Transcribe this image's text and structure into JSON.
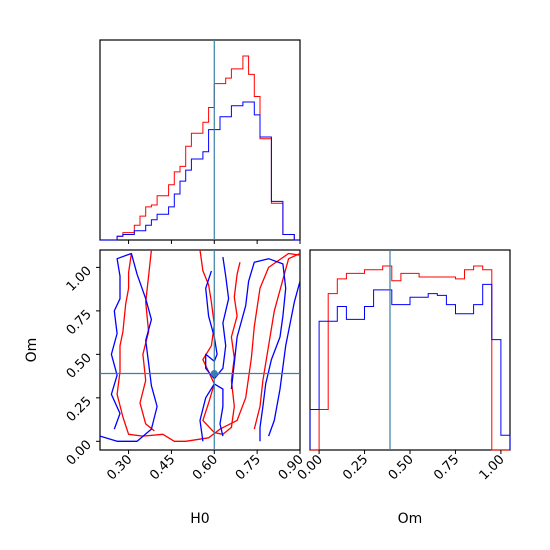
{
  "chart_data": {
    "type": "corner",
    "parameters": [
      "H0",
      "Om"
    ],
    "truths": {
      "H0": 0.6,
      "Om": 0.39
    },
    "truth_color": "#3a7fa8",
    "series": [
      {
        "color": "#ff0000"
      },
      {
        "color": "#0000ff"
      }
    ],
    "h0_hist": {
      "type": "histogram",
      "xlim": [
        0.2,
        0.9
      ],
      "bin_edges": [
        0.2,
        0.22,
        0.24,
        0.26,
        0.28,
        0.3,
        0.32,
        0.34,
        0.36,
        0.38,
        0.4,
        0.42,
        0.44,
        0.46,
        0.48,
        0.5,
        0.52,
        0.54,
        0.56,
        0.58,
        0.6,
        0.62,
        0.64,
        0.66,
        0.68,
        0.7,
        0.72,
        0.74,
        0.76,
        0.78,
        0.8,
        0.82,
        0.84,
        0.86,
        0.88,
        0.9
      ],
      "red": [
        0,
        0,
        0,
        0.02,
        0.04,
        0.04,
        0.08,
        0.13,
        0.18,
        0.19,
        0.24,
        0.24,
        0.3,
        0.37,
        0.4,
        0.51,
        0.58,
        0.58,
        0.64,
        0.72,
        0.85,
        0.85,
        0.88,
        0.93,
        0.93,
        1.0,
        0.9,
        0.78,
        0.55,
        0.55,
        0.2,
        0.2,
        0.03,
        0.03,
        0.0
      ],
      "blue": [
        0,
        0,
        0,
        0.02,
        0.03,
        0.03,
        0.05,
        0.05,
        0.08,
        0.11,
        0.14,
        0.14,
        0.18,
        0.25,
        0.32,
        0.38,
        0.44,
        0.44,
        0.48,
        0.6,
        0.6,
        0.67,
        0.67,
        0.73,
        0.73,
        0.75,
        0.75,
        0.68,
        0.56,
        0.56,
        0.21,
        0.21,
        0.03,
        0.03,
        0.0
      ]
    },
    "om_hist": {
      "type": "histogram",
      "xlim": [
        -0.05,
        1.05
      ],
      "bin_edges": [
        -0.05,
        0.0,
        0.05,
        0.1,
        0.15,
        0.2,
        0.25,
        0.3,
        0.35,
        0.4,
        0.45,
        0.5,
        0.55,
        0.6,
        0.65,
        0.7,
        0.75,
        0.8,
        0.85,
        0.9,
        0.95,
        1.0,
        1.05
      ],
      "red": [
        0.0,
        0.22,
        0.85,
        0.93,
        0.96,
        0.96,
        0.98,
        0.98,
        1.0,
        0.92,
        0.96,
        0.96,
        0.94,
        0.94,
        0.94,
        0.94,
        0.93,
        0.98,
        1.0,
        0.98,
        0.0,
        0.0
      ],
      "blue": [
        0.22,
        0.7,
        0.7,
        0.78,
        0.71,
        0.71,
        0.78,
        0.87,
        0.87,
        0.79,
        0.79,
        0.83,
        0.83,
        0.85,
        0.84,
        0.79,
        0.74,
        0.74,
        0.79,
        0.9,
        0.6,
        0.08
      ]
    },
    "contour": {
      "type": "contour",
      "xlim": [
        0.2,
        0.9
      ],
      "ylim": [
        -0.05,
        1.1
      ],
      "truth_point": [
        0.6,
        0.39
      ],
      "red_contours": [
        [
          [
            0.31,
            1.08
          ],
          [
            0.3,
            0.97
          ],
          [
            0.3,
            0.88
          ],
          [
            0.29,
            0.79
          ],
          [
            0.28,
            0.63
          ],
          [
            0.27,
            0.55
          ],
          [
            0.27,
            0.4
          ],
          [
            0.26,
            0.27
          ],
          [
            0.28,
            0.14
          ],
          [
            0.3,
            0.04
          ],
          [
            0.35,
            0.03
          ],
          [
            0.42,
            0.04
          ],
          [
            0.46,
            0.0
          ],
          [
            0.5,
            0.0
          ],
          [
            0.58,
            0.02
          ],
          [
            0.62,
            0.07
          ],
          [
            0.68,
            0.12
          ],
          [
            0.71,
            0.25
          ],
          [
            0.73,
            0.48
          ],
          [
            0.74,
            0.66
          ],
          [
            0.76,
            0.88
          ],
          [
            0.79,
            1.0
          ],
          [
            0.86,
            1.08
          ],
          [
            0.9,
            1.07
          ]
        ],
        [
          [
            0.55,
            1.1
          ],
          [
            0.56,
            0.98
          ],
          [
            0.58,
            0.9
          ],
          [
            0.59,
            0.8
          ],
          [
            0.6,
            0.67
          ],
          [
            0.59,
            0.55
          ],
          [
            0.56,
            0.47
          ],
          [
            0.58,
            0.4
          ],
          [
            0.6,
            0.33
          ],
          [
            0.58,
            0.22
          ],
          [
            0.56,
            0.12
          ],
          [
            0.6,
            0.05
          ],
          [
            0.63,
            0.04
          ],
          [
            0.66,
            0.08
          ],
          [
            0.67,
            0.2
          ],
          [
            0.66,
            0.35
          ],
          [
            0.67,
            0.48
          ],
          [
            0.66,
            0.6
          ],
          [
            0.68,
            0.72
          ],
          [
            0.67,
            0.83
          ],
          [
            0.68,
            0.96
          ],
          [
            0.69,
            1.03
          ]
        ],
        [
          [
            0.38,
            1.1
          ],
          [
            0.37,
            0.95
          ],
          [
            0.36,
            0.8
          ],
          [
            0.37,
            0.63
          ],
          [
            0.35,
            0.5
          ],
          [
            0.36,
            0.35
          ],
          [
            0.34,
            0.22
          ],
          [
            0.36,
            0.1
          ],
          [
            0.39,
            0.06
          ]
        ],
        [
          [
            0.74,
            0.07
          ],
          [
            0.76,
            0.2
          ],
          [
            0.77,
            0.35
          ],
          [
            0.79,
            0.55
          ],
          [
            0.81,
            0.75
          ],
          [
            0.84,
            0.93
          ],
          [
            0.86,
            1.05
          ],
          [
            0.9,
            1.08
          ]
        ]
      ],
      "blue_contours": [
        [
          [
            0.2,
            0.03
          ],
          [
            0.26,
            0.0
          ],
          [
            0.33,
            0.0
          ],
          [
            0.38,
            0.07
          ],
          [
            0.4,
            0.2
          ],
          [
            0.38,
            0.32
          ],
          [
            0.37,
            0.45
          ],
          [
            0.36,
            0.58
          ],
          [
            0.38,
            0.7
          ],
          [
            0.36,
            0.82
          ],
          [
            0.33,
            0.96
          ],
          [
            0.31,
            1.08
          ],
          [
            0.26,
            1.05
          ],
          [
            0.27,
            0.95
          ],
          [
            0.27,
            0.82
          ],
          [
            0.25,
            0.75
          ],
          [
            0.26,
            0.62
          ],
          [
            0.24,
            0.5
          ],
          [
            0.26,
            0.38
          ],
          [
            0.24,
            0.27
          ],
          [
            0.27,
            0.16
          ],
          [
            0.25,
            0.07
          ]
        ],
        [
          [
            0.56,
            0.0
          ],
          [
            0.55,
            0.12
          ],
          [
            0.57,
            0.25
          ],
          [
            0.6,
            0.33
          ],
          [
            0.63,
            0.3
          ],
          [
            0.63,
            0.2
          ],
          [
            0.62,
            0.1
          ],
          [
            0.63,
            0.03
          ]
        ],
        [
          [
            0.59,
            0.98
          ],
          [
            0.57,
            0.88
          ],
          [
            0.58,
            0.72
          ],
          [
            0.6,
            0.6
          ],
          [
            0.61,
            0.5
          ],
          [
            0.6,
            0.46
          ],
          [
            0.57,
            0.5
          ],
          [
            0.57,
            0.42
          ],
          [
            0.6,
            0.36
          ],
          [
            0.63,
            0.42
          ],
          [
            0.64,
            0.55
          ],
          [
            0.63,
            0.68
          ],
          [
            0.65,
            0.82
          ],
          [
            0.64,
            0.95
          ],
          [
            0.63,
            1.06
          ]
        ],
        [
          [
            0.66,
            0.3
          ],
          [
            0.67,
            0.45
          ],
          [
            0.68,
            0.6
          ],
          [
            0.71,
            0.78
          ],
          [
            0.72,
            0.92
          ],
          [
            0.74,
            1.03
          ],
          [
            0.79,
            1.05
          ],
          [
            0.84,
            1.02
          ],
          [
            0.85,
            0.88
          ],
          [
            0.84,
            0.72
          ],
          [
            0.83,
            0.6
          ],
          [
            0.8,
            0.47
          ],
          [
            0.78,
            0.33
          ],
          [
            0.77,
            0.2
          ],
          [
            0.76,
            0.08
          ],
          [
            0.76,
            0.0
          ]
        ],
        [
          [
            0.9,
            0.92
          ],
          [
            0.88,
            0.8
          ],
          [
            0.85,
            0.55
          ],
          [
            0.83,
            0.3
          ],
          [
            0.81,
            0.12
          ],
          [
            0.79,
            0.03
          ]
        ]
      ]
    },
    "axes": {
      "h0_label": "H0",
      "om_label": "Om",
      "contour_xticks": [
        "0.30",
        "0.45",
        "0.60",
        "0.75",
        "0.90"
      ],
      "contour_yticks": [
        "0.00",
        "0.25",
        "0.50",
        "0.75",
        "1.00"
      ],
      "om_hist_xticks": [
        "0.00",
        "0.25",
        "0.50",
        "0.75",
        "1.00"
      ]
    }
  }
}
